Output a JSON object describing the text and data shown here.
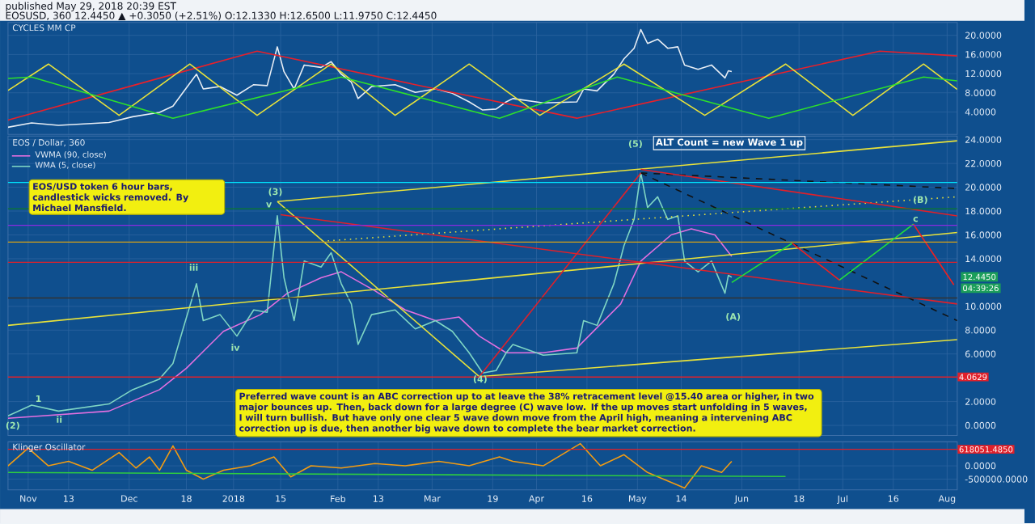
{
  "chart_data": [
    {
      "type": "line",
      "title": "CYCLES MM CP",
      "annotations": [
        "published May 29, 2018 20:39 EST",
        "EOSUSD, 360 12.4450 ▲ +0.3050 (+2.51%) O:12.1330 H:12.6500 L:11.9750 C:12.4450"
      ],
      "xlim": [
        "2017-10-26",
        "2018-08-04"
      ],
      "ylim": [
        -0.7,
        22.7
      ],
      "xticks": [
        {
          "value": "2017-11-01",
          "label": null
        },
        {
          "value": "2017-11-13",
          "label": null
        },
        {
          "value": "2017-12-01",
          "label": null
        },
        {
          "value": "2017-12-18",
          "label": null
        },
        {
          "value": "2018-01-01",
          "label": null
        },
        {
          "value": "2018-01-15",
          "label": null
        },
        {
          "value": "2018-02-01",
          "label": null
        },
        {
          "value": "2018-02-13",
          "label": null
        },
        {
          "value": "2018-03-01",
          "label": null
        },
        {
          "value": "2018-03-19",
          "label": null
        },
        {
          "value": "2018-04-01",
          "label": null
        },
        {
          "value": "2018-04-16",
          "label": null
        },
        {
          "value": "2018-05-01",
          "label": null
        },
        {
          "value": "2018-05-14",
          "label": null
        },
        {
          "value": "2018-06-01",
          "label": null
        },
        {
          "value": "2018-06-18",
          "label": null
        },
        {
          "value": "2018-07-01",
          "label": null
        },
        {
          "value": "2018-07-16",
          "label": null
        },
        {
          "value": "2018-08-01",
          "label": null
        }
      ],
      "yticks": [
        {
          "value": 4,
          "label": "4.0000"
        },
        {
          "value": 8,
          "label": "8.0000"
        },
        {
          "value": 12,
          "label": "12.0000"
        },
        {
          "value": 16,
          "label": "16.0000"
        },
        {
          "value": 20,
          "label": "20.0000"
        }
      ],
      "tick_labels": "y",
      "grid": true,
      "marker": "none",
      "series": [
        {
          "color": "#e8eef5",
          "x": [
            "2017-10-26",
            "2017-11-02",
            "2017-11-10",
            "2017-11-25",
            "2017-12-02",
            "2017-12-10",
            "2017-12-14",
            "2017-12-17",
            "2017-12-21",
            "2017-12-23",
            "2017-12-28",
            "2018-01-02",
            "2018-01-07",
            "2018-01-11",
            "2018-01-14",
            "2018-01-16",
            "2018-01-19",
            "2018-01-22",
            "2018-01-27",
            "2018-01-30",
            "2018-02-02",
            "2018-02-05",
            "2018-02-07",
            "2018-02-11",
            "2018-02-18",
            "2018-02-24",
            "2018-03-02",
            "2018-03-07",
            "2018-03-12",
            "2018-03-16",
            "2018-03-20",
            "2018-03-23",
            "2018-03-25",
            "2018-04-03",
            "2018-04-13",
            "2018-04-15",
            "2018-04-19",
            "2018-04-24",
            "2018-04-27",
            "2018-04-30",
            "2018-05-02",
            "2018-05-04",
            "2018-05-07",
            "2018-05-10",
            "2018-05-13",
            "2018-05-15",
            "2018-05-19",
            "2018-05-23",
            "2018-05-27",
            "2018-05-28",
            "2018-05-29"
          ],
          "values": [
            0.8,
            1.7,
            1.2,
            1.8,
            3.0,
            3.9,
            5.2,
            8.1,
            11.9,
            8.8,
            9.3,
            7.5,
            9.7,
            9.5,
            17.6,
            12.4,
            8.8,
            13.8,
            13.3,
            14.5,
            11.9,
            10.2,
            6.8,
            9.3,
            9.7,
            8.1,
            8.8,
            7.9,
            6.1,
            4.4,
            4.6,
            6.1,
            6.8,
            5.9,
            6.1,
            8.8,
            8.4,
            11.9,
            15.1,
            17.3,
            21.2,
            18.3,
            19.2,
            17.3,
            17.6,
            13.8,
            12.9,
            13.8,
            11.1,
            12.6,
            12.445
          ]
        },
        {
          "color": "#e8202a",
          "x": [
            "2017-10-26",
            "2017-12-02",
            "2018-01-08",
            "2018-02-24",
            "2018-04-13",
            "2018-05-28",
            "2018-07-12",
            "2018-08-04"
          ],
          "values": [
            2.3,
            9.5,
            16.7,
            9.7,
            2.7,
            9.7,
            16.7,
            15.7
          ]
        },
        {
          "color": "#e8e23a",
          "x": [
            "2017-10-26",
            "2017-11-07",
            "2017-11-28",
            "2017-12-19",
            "2018-01-08",
            "2018-01-30",
            "2018-02-18",
            "2018-03-12",
            "2018-04-02",
            "2018-04-27",
            "2018-05-21",
            "2018-06-14",
            "2018-07-04",
            "2018-07-25",
            "2018-08-04"
          ],
          "values": [
            8.5,
            14.0,
            3.3,
            14.0,
            3.3,
            14.0,
            3.3,
            14.0,
            3.3,
            14.0,
            3.3,
            14.0,
            3.3,
            14.0,
            8.7
          ]
        },
        {
          "color": "#2de02a",
          "x": [
            "2017-10-26",
            "2017-11-02",
            "2017-12-14",
            "2018-02-02",
            "2018-03-21",
            "2018-04-25",
            "2018-06-09",
            "2018-07-25",
            "2018-08-04"
          ],
          "values": [
            11.0,
            11.3,
            2.7,
            11.3,
            2.7,
            11.3,
            2.7,
            11.3,
            10.5
          ]
        }
      ]
    },
    {
      "type": "line",
      "title": "EOS / Dollar, 360",
      "legend": "top left",
      "grid": true,
      "tick_labels": "y",
      "marker": "none",
      "annotations": [
        "EOS/USD token 6 hour bars, candlestick wicks removed. By Michael Mansfield.",
        "ALT Count = new Wave 1 up",
        "Preferred wave count is an ABC correction up to at leave the 38% retracement level @15.40 area or higher, in two major bounces up. Then, back down for a large degree (C) wave low. If the up moves start unfolding in 5 waves, I will turn bullish. But have only one clear 5 wave down move from the April high, meaning a intervening ABC correction up is due, then another big wave down to complete the bear market correction.",
        "12.4450",
        "04:39:26",
        "(2)",
        "1",
        "ii",
        "iii",
        "iv",
        "v",
        "(3)",
        "(4)",
        "(5)",
        "(A)",
        "(B)",
        "c"
      ],
      "xlim": [
        "2017-10-26",
        "2018-08-04"
      ],
      "ylim": [
        -0.84,
        24.3
      ],
      "xticks": [
        {
          "value": "2017-11-01",
          "label": null
        },
        {
          "value": "2017-11-13",
          "label": null
        },
        {
          "value": "2017-12-01",
          "label": null
        },
        {
          "value": "2017-12-18",
          "label": null
        },
        {
          "value": "2018-01-01",
          "label": null
        },
        {
          "value": "2018-01-15",
          "label": null
        },
        {
          "value": "2018-02-01",
          "label": null
        },
        {
          "value": "2018-02-13",
          "label": null
        },
        {
          "value": "2018-03-01",
          "label": null
        },
        {
          "value": "2018-03-19",
          "label": null
        },
        {
          "value": "2018-04-01",
          "label": null
        },
        {
          "value": "2018-04-16",
          "label": null
        },
        {
          "value": "2018-05-01",
          "label": null
        },
        {
          "value": "2018-05-14",
          "label": null
        },
        {
          "value": "2018-06-01",
          "label": null
        },
        {
          "value": "2018-06-18",
          "label": null
        },
        {
          "value": "2018-07-01",
          "label": null
        },
        {
          "value": "2018-07-16",
          "label": null
        },
        {
          "value": "2018-08-01",
          "label": null
        }
      ],
      "yticks": [
        {
          "value": 0,
          "label": "0.0000"
        },
        {
          "value": 2,
          "label": "2.0000"
        },
        {
          "value": 6,
          "label": "6.0000"
        },
        {
          "value": 8,
          "label": "8.0000"
        },
        {
          "value": 10,
          "label": "10.0000"
        },
        {
          "value": 14,
          "label": "14.0000"
        },
        {
          "value": 16,
          "label": "16.0000"
        },
        {
          "value": 18,
          "label": "18.0000"
        },
        {
          "value": 20,
          "label": "20.0000"
        },
        {
          "value": 22,
          "label": "22.0000"
        },
        {
          "value": 24,
          "label": "24.0000"
        }
      ],
      "ref_lines": [
        {
          "axis": "y",
          "value": 20.4,
          "color": "#00e5ff"
        },
        {
          "axis": "y",
          "value": 18.2,
          "color": "#0b7a2b"
        },
        {
          "axis": "y",
          "value": 16.8,
          "color": "#8a2be2"
        },
        {
          "axis": "y",
          "value": 15.4,
          "color": "#d4a017"
        },
        {
          "axis": "y",
          "value": 13.7,
          "color": "#e0202a"
        },
        {
          "axis": "y",
          "value": 10.7,
          "color": "#333333"
        },
        {
          "axis": "y",
          "value": 4.0629,
          "label": "4.0629",
          "color": "#e0202a"
        }
      ],
      "series": [
        {
          "name": "VWMA (90, close)",
          "color": "#e36fe0",
          "x": [
            "2017-10-26",
            "2017-11-25",
            "2017-12-10",
            "2017-12-18",
            "2017-12-29",
            "2018-01-09",
            "2018-01-17",
            "2018-01-27",
            "2018-02-02",
            "2018-02-12",
            "2018-02-21",
            "2018-03-02",
            "2018-03-09",
            "2018-03-15",
            "2018-03-23",
            "2018-04-03",
            "2018-04-13",
            "2018-04-26",
            "2018-05-02",
            "2018-05-11",
            "2018-05-17",
            "2018-05-24",
            "2018-05-29"
          ],
          "values": [
            0.6,
            1.2,
            3.0,
            4.8,
            7.9,
            9.3,
            11.1,
            12.4,
            12.9,
            11.3,
            9.7,
            8.8,
            9.1,
            7.5,
            6.1,
            6.1,
            6.5,
            10.2,
            13.8,
            16.0,
            16.5,
            16.0,
            14.2
          ]
        },
        {
          "name": "WMA (5, close)",
          "color": "#7fd6c4",
          "x": [
            "2017-10-26",
            "2017-11-02",
            "2017-11-10",
            "2017-11-25",
            "2017-12-02",
            "2017-12-10",
            "2017-12-14",
            "2017-12-17",
            "2017-12-21",
            "2017-12-23",
            "2017-12-28",
            "2018-01-02",
            "2018-01-07",
            "2018-01-11",
            "2018-01-14",
            "2018-01-16",
            "2018-01-19",
            "2018-01-22",
            "2018-01-27",
            "2018-01-30",
            "2018-02-02",
            "2018-02-05",
            "2018-02-07",
            "2018-02-11",
            "2018-02-18",
            "2018-02-24",
            "2018-03-02",
            "2018-03-07",
            "2018-03-12",
            "2018-03-16",
            "2018-03-20",
            "2018-03-23",
            "2018-03-25",
            "2018-04-03",
            "2018-04-13",
            "2018-04-15",
            "2018-04-19",
            "2018-04-24",
            "2018-04-27",
            "2018-04-30",
            "2018-05-02",
            "2018-05-04",
            "2018-05-07",
            "2018-05-10",
            "2018-05-13",
            "2018-05-15",
            "2018-05-19",
            "2018-05-23",
            "2018-05-27",
            "2018-05-28",
            "2018-05-29"
          ],
          "values": [
            0.8,
            1.7,
            1.2,
            1.8,
            3.0,
            3.9,
            5.2,
            8.1,
            11.9,
            8.8,
            9.3,
            7.5,
            9.7,
            9.5,
            17.6,
            12.4,
            8.8,
            13.8,
            13.3,
            14.5,
            11.9,
            10.2,
            6.8,
            9.3,
            9.7,
            8.1,
            8.8,
            7.9,
            6.1,
            4.4,
            4.6,
            6.1,
            6.8,
            5.9,
            6.1,
            8.8,
            8.4,
            11.9,
            15.1,
            17.3,
            21.2,
            18.3,
            19.2,
            17.3,
            17.6,
            13.8,
            12.9,
            13.8,
            11.1,
            12.6,
            12.445
          ]
        },
        {
          "color": "#e8e23a",
          "x": [
            "2018-01-14",
            "2018-08-04"
          ],
          "values": [
            18.8,
            23.9
          ]
        },
        {
          "color": "#e8e23a",
          "x": [
            "2017-10-26",
            "2018-08-04"
          ],
          "values": [
            8.4,
            16.2
          ]
        },
        {
          "color": "#e8e23a",
          "x": [
            "2018-03-15",
            "2018-08-04"
          ],
          "values": [
            4.1,
            7.2
          ]
        },
        {
          "color": "#e8e23a",
          "x": [
            "2018-01-14",
            "2018-03-15"
          ],
          "values": [
            18.8,
            4.1
          ]
        },
        {
          "color": "#e8e23a",
          "line_style": "dotted",
          "x": [
            "2018-01-29",
            "2018-08-04"
          ],
          "values": [
            15.5,
            19.2
          ]
        },
        {
          "color": "#111111",
          "line_style": "dashed",
          "x": [
            "2018-05-02",
            "2018-08-04"
          ],
          "values": [
            21.2,
            8.8
          ]
        },
        {
          "color": "#111111",
          "line_style": "dashed",
          "x": [
            "2018-05-02",
            "2018-08-04"
          ],
          "values": [
            21.2,
            19.9
          ]
        },
        {
          "color": "#e0202a",
          "x": [
            "2018-01-15",
            "2018-08-04"
          ],
          "values": [
            17.7,
            10.2
          ]
        },
        {
          "color": "#e0202a",
          "x": [
            "2018-05-02",
            "2018-08-04"
          ],
          "values": [
            21.5,
            17.6
          ]
        },
        {
          "color": "#e0202a",
          "x": [
            "2018-03-15",
            "2018-05-02"
          ],
          "values": [
            4.1,
            21.2
          ]
        },
        {
          "color": "#22e03a",
          "x": [
            "2018-05-29",
            "2018-06-16",
            "2018-06-23",
            "2018-06-30",
            "2018-07-22"
          ],
          "values": [
            12.0,
            15.3,
            null,
            12.2,
            16.9
          ]
        },
        {
          "color": "#f02020",
          "x": [
            "2018-06-16",
            "2018-06-30",
            "2018-07-08",
            "2018-07-22",
            "2018-08-03"
          ],
          "values": [
            15.3,
            12.2,
            null,
            16.9,
            11.8
          ]
        }
      ]
    },
    {
      "type": "line",
      "title": "Klinger Oscillator",
      "grid": true,
      "marker": "none",
      "xlim": [
        "2017-10-26",
        "2018-08-04"
      ],
      "ylim": [
        -900000,
        900000
      ],
      "xticks": [
        {
          "value": "2017-11-01",
          "label": "Nov"
        },
        {
          "value": "2017-11-13",
          "label": "13"
        },
        {
          "value": "2017-12-01",
          "label": "Dec"
        },
        {
          "value": "2017-12-18",
          "label": "18"
        },
        {
          "value": "2018-01-01",
          "label": "2018"
        },
        {
          "value": "2018-01-15",
          "label": "15"
        },
        {
          "value": "2018-02-01",
          "label": "Feb"
        },
        {
          "value": "2018-02-13",
          "label": "13"
        },
        {
          "value": "2018-03-01",
          "label": "Mar"
        },
        {
          "value": "2018-03-19",
          "label": "19"
        },
        {
          "value": "2018-04-01",
          "label": "Apr"
        },
        {
          "value": "2018-04-16",
          "label": "16"
        },
        {
          "value": "2018-05-01",
          "label": "May"
        },
        {
          "value": "2018-05-14",
          "label": "14"
        },
        {
          "value": "2018-06-01",
          "label": "Jun"
        },
        {
          "value": "2018-06-18",
          "label": "18"
        },
        {
          "value": "2018-07-01",
          "label": "Jul"
        },
        {
          "value": "2018-07-16",
          "label": "16"
        },
        {
          "value": "2018-08-01",
          "label": "Aug"
        }
      ],
      "yticks": [
        {
          "value": 0,
          "label": "0.0000"
        },
        {
          "value": -500000,
          "label": "-500000.0000"
        }
      ],
      "ref_lines": [
        {
          "axis": "y",
          "value": 618051.485,
          "label": "618051.4850",
          "color": "#e0202a"
        }
      ],
      "series": [
        {
          "color": "#f39c12",
          "x": [
            "2017-10-26",
            "2017-11-01",
            "2017-11-07",
            "2017-11-13",
            "2017-11-20",
            "2017-11-28",
            "2017-12-03",
            "2017-12-07",
            "2017-12-10",
            "2017-12-14",
            "2017-12-18",
            "2017-12-23",
            "2017-12-29",
            "2018-01-06",
            "2018-01-13",
            "2018-01-18",
            "2018-01-24",
            "2018-02-02",
            "2018-02-12",
            "2018-02-21",
            "2018-03-03",
            "2018-03-12",
            "2018-03-21",
            "2018-03-25",
            "2018-04-03",
            "2018-04-14",
            "2018-04-20",
            "2018-04-27",
            "2018-05-04",
            "2018-05-15",
            "2018-05-20",
            "2018-05-26",
            "2018-05-29"
          ],
          "values": [
            0,
            667000,
            0,
            167000,
            -167000,
            500000,
            -83000,
            333000,
            -167000,
            750000,
            -167000,
            -500000,
            -167000,
            0,
            333000,
            -417000,
            0,
            -83000,
            83000,
            0,
            167000,
            0,
            333000,
            167000,
            0,
            833000,
            0,
            417000,
            -250000,
            -833000,
            0,
            -250000,
            167000
          ]
        },
        {
          "color": "#2ecc40",
          "x": [
            "2017-10-26",
            "2018-06-14"
          ],
          "values": [
            -250000,
            -400000
          ]
        }
      ]
    }
  ]
}
